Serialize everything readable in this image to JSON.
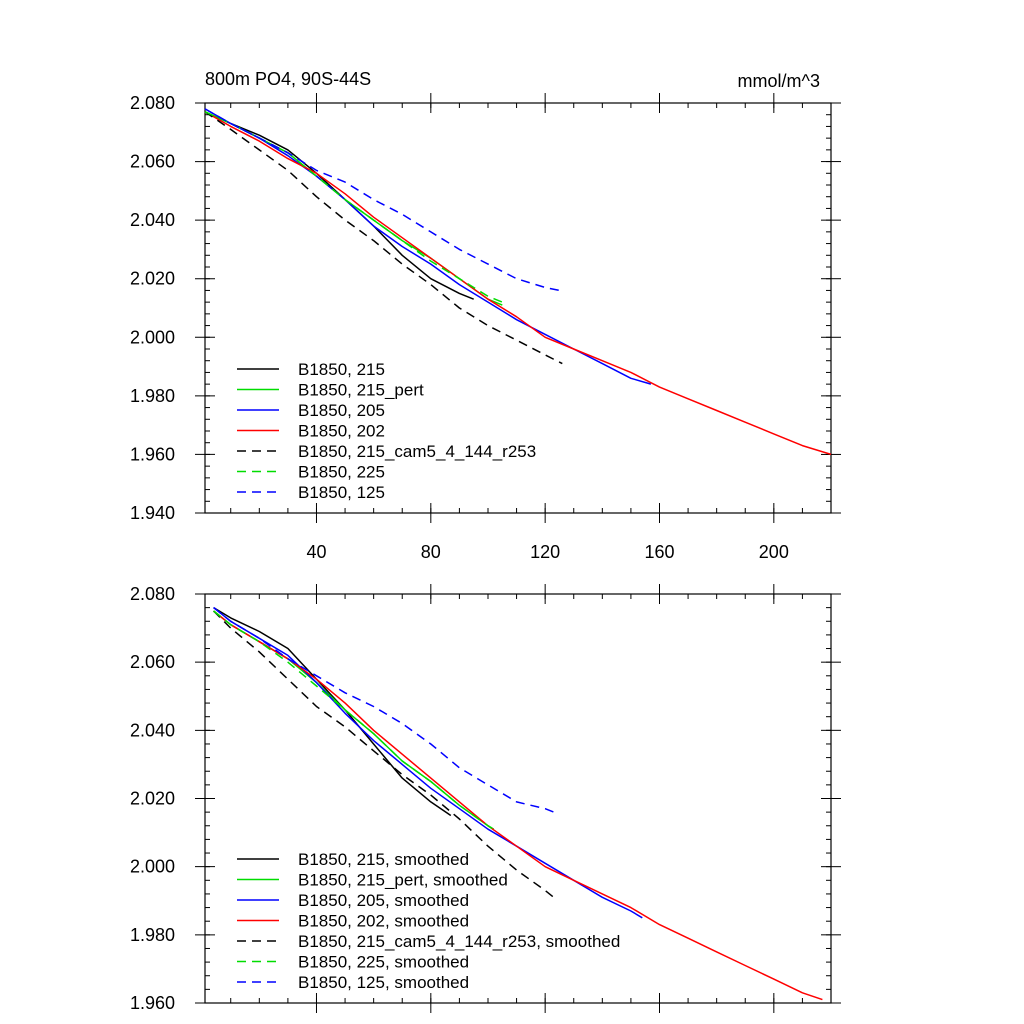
{
  "chart_data": [
    {
      "type": "line",
      "title": "800m PO4, 90S-44S",
      "units_label": "mmol/m^3",
      "xlim": [
        1,
        220
      ],
      "ylim": [
        1.94,
        2.08
      ],
      "xticks": [
        40,
        80,
        120,
        160,
        200
      ],
      "xtick_labels": [
        "40",
        "80",
        "120",
        "160",
        "200"
      ],
      "yticks": [
        1.94,
        1.96,
        1.98,
        2.0,
        2.02,
        2.04,
        2.06,
        2.08
      ],
      "ytick_labels": [
        "1.940",
        "1.960",
        "1.980",
        "2.000",
        "2.020",
        "2.040",
        "2.060",
        "2.080"
      ],
      "legend_position": "bottom-left",
      "series": [
        {
          "name": "B1850, 215",
          "color": "#000000",
          "dash": "solid",
          "x": [
            1,
            10,
            20,
            30,
            40,
            50,
            60,
            70,
            80,
            90,
            95
          ],
          "y": [
            2.077,
            2.073,
            2.069,
            2.064,
            2.056,
            2.047,
            2.038,
            2.028,
            2.02,
            2.015,
            2.013
          ]
        },
        {
          "name": "B1850, 215_pert",
          "color": "#00dd00",
          "dash": "solid",
          "x": [
            1,
            10,
            20,
            30,
            40,
            50,
            60,
            70,
            80,
            90,
            100,
            105
          ],
          "y": [
            2.077,
            2.073,
            2.068,
            2.063,
            2.055,
            2.047,
            2.04,
            2.033,
            2.027,
            2.02,
            2.013,
            2.011
          ]
        },
        {
          "name": "B1850, 205",
          "color": "#0000ff",
          "dash": "solid",
          "x": [
            1,
            10,
            20,
            30,
            40,
            50,
            60,
            70,
            80,
            90,
            100,
            110,
            120,
            130,
            140,
            150,
            157
          ],
          "y": [
            2.078,
            2.073,
            2.068,
            2.062,
            2.055,
            2.047,
            2.038,
            2.031,
            2.025,
            2.018,
            2.012,
            2.006,
            2.001,
            1.996,
            1.991,
            1.986,
            1.984
          ]
        },
        {
          "name": "B1850, 202",
          "color": "#ff0000",
          "dash": "solid",
          "x": [
            1,
            10,
            20,
            30,
            40,
            50,
            60,
            70,
            80,
            90,
            100,
            110,
            120,
            130,
            140,
            150,
            160,
            170,
            180,
            190,
            200,
            210,
            220
          ],
          "y": [
            2.077,
            2.072,
            2.067,
            2.061,
            2.056,
            2.049,
            2.041,
            2.034,
            2.027,
            2.02,
            2.013,
            2.007,
            2.0,
            1.996,
            1.992,
            1.988,
            1.983,
            1.979,
            1.975,
            1.971,
            1.967,
            1.963,
            1.96
          ]
        },
        {
          "name": "B1850, 215_cam5_4_144_r253",
          "color": "#000000",
          "dash": "dashed",
          "x": [
            1,
            10,
            20,
            30,
            40,
            50,
            60,
            70,
            80,
            90,
            100,
            110,
            120,
            126
          ],
          "y": [
            2.077,
            2.071,
            2.064,
            2.057,
            2.048,
            2.04,
            2.033,
            2.025,
            2.018,
            2.01,
            2.004,
            1.999,
            1.994,
            1.991
          ]
        },
        {
          "name": "B1850, 225",
          "color": "#00dd00",
          "dash": "dashed",
          "x": [
            1,
            10,
            20,
            30,
            40,
            50,
            60,
            70,
            80,
            90,
            100,
            105
          ],
          "y": [
            2.077,
            2.073,
            2.068,
            2.063,
            2.055,
            2.047,
            2.04,
            2.033,
            2.026,
            2.02,
            2.014,
            2.012
          ]
        },
        {
          "name": "B1850, 125",
          "color": "#0000ff",
          "dash": "dashed",
          "x": [
            1,
            10,
            20,
            30,
            40,
            50,
            60,
            70,
            80,
            90,
            100,
            110,
            120,
            125
          ],
          "y": [
            2.078,
            2.073,
            2.068,
            2.063,
            2.057,
            2.053,
            2.047,
            2.042,
            2.036,
            2.03,
            2.025,
            2.02,
            2.017,
            2.016
          ]
        }
      ]
    },
    {
      "type": "line",
      "title": "",
      "units_label": "",
      "xlim": [
        1,
        220
      ],
      "ylim": [
        1.96,
        2.08
      ],
      "xticks": [
        40,
        80,
        120,
        160,
        200
      ],
      "xtick_labels": [],
      "yticks": [
        1.96,
        1.98,
        2.0,
        2.02,
        2.04,
        2.06,
        2.08
      ],
      "ytick_labels": [
        "1.960",
        "1.980",
        "2.000",
        "2.020",
        "2.040",
        "2.060",
        "2.080"
      ],
      "legend_position": "bottom-left",
      "series": [
        {
          "name": "B1850, 215, smoothed",
          "color": "#000000",
          "dash": "solid",
          "x": [
            4,
            10,
            20,
            30,
            40,
            50,
            60,
            70,
            80,
            87
          ],
          "y": [
            2.076,
            2.073,
            2.069,
            2.064,
            2.055,
            2.046,
            2.036,
            2.026,
            2.019,
            2.015
          ]
        },
        {
          "name": "B1850, 215_pert, smoothed",
          "color": "#00dd00",
          "dash": "solid",
          "x": [
            4,
            10,
            20,
            30,
            40,
            50,
            60,
            70,
            80,
            90,
            100,
            102
          ],
          "y": [
            2.075,
            2.071,
            2.066,
            2.061,
            2.054,
            2.046,
            2.039,
            2.031,
            2.025,
            2.018,
            2.012,
            2.011
          ]
        },
        {
          "name": "B1850, 205, smoothed",
          "color": "#0000ff",
          "dash": "solid",
          "x": [
            4,
            10,
            20,
            30,
            40,
            50,
            60,
            70,
            80,
            90,
            100,
            110,
            120,
            130,
            140,
            150,
            154
          ],
          "y": [
            2.076,
            2.072,
            2.067,
            2.062,
            2.054,
            2.045,
            2.037,
            2.03,
            2.023,
            2.017,
            2.011,
            2.006,
            2.001,
            1.996,
            1.991,
            1.987,
            1.985
          ]
        },
        {
          "name": "B1850, 202, smoothed",
          "color": "#ff0000",
          "dash": "solid",
          "x": [
            4,
            10,
            20,
            30,
            40,
            50,
            60,
            70,
            80,
            90,
            100,
            110,
            120,
            130,
            140,
            150,
            160,
            170,
            180,
            190,
            200,
            210,
            217
          ],
          "y": [
            2.075,
            2.071,
            2.066,
            2.061,
            2.055,
            2.048,
            2.04,
            2.033,
            2.026,
            2.019,
            2.012,
            2.006,
            2.0,
            1.996,
            1.992,
            1.988,
            1.983,
            1.979,
            1.975,
            1.971,
            1.967,
            1.963,
            1.961
          ]
        },
        {
          "name": "B1850, 215_cam5_4_144_r253, smoothed",
          "color": "#000000",
          "dash": "dashed",
          "x": [
            4,
            10,
            20,
            30,
            40,
            50,
            60,
            70,
            80,
            90,
            100,
            110,
            120,
            123
          ],
          "y": [
            2.075,
            2.07,
            2.063,
            2.055,
            2.047,
            2.041,
            2.034,
            2.027,
            2.021,
            2.014,
            2.006,
            1.999,
            1.993,
            1.991
          ]
        },
        {
          "name": "B1850, 225, smoothed",
          "color": "#00dd00",
          "dash": "dashed",
          "x": [
            4,
            10,
            20,
            30,
            40,
            50,
            60,
            70,
            80,
            90,
            100,
            102
          ],
          "y": [
            2.075,
            2.071,
            2.066,
            2.06,
            2.053,
            2.046,
            2.039,
            2.031,
            2.025,
            2.018,
            2.012,
            2.011
          ]
        },
        {
          "name": "B1850, 125, smoothed",
          "color": "#0000ff",
          "dash": "dashed",
          "x": [
            4,
            10,
            20,
            30,
            40,
            50,
            60,
            70,
            80,
            90,
            100,
            110,
            120,
            123
          ],
          "y": [
            2.076,
            2.072,
            2.067,
            2.061,
            2.056,
            2.051,
            2.047,
            2.042,
            2.036,
            2.029,
            2.024,
            2.019,
            2.017,
            2.016
          ]
        }
      ]
    }
  ]
}
